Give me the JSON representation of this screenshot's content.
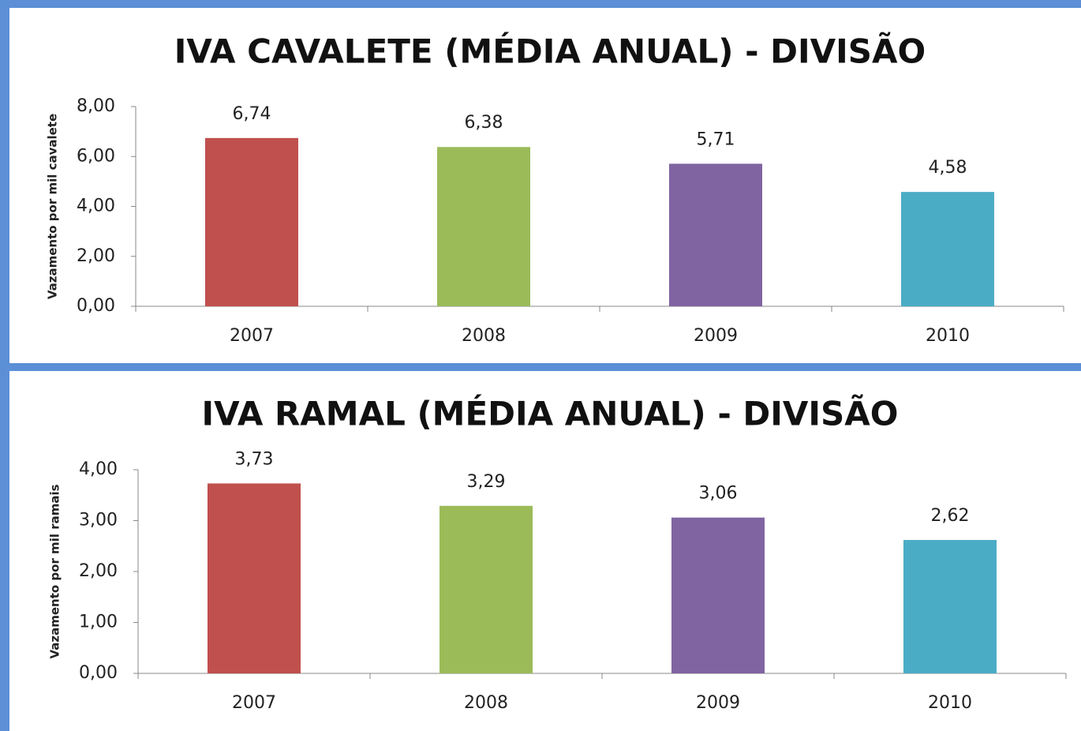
{
  "chart_data": [
    {
      "type": "bar",
      "title": "IVA CAVALETE (MÉDIA ANUAL) - DIVISÃO",
      "y_label": "Vazamento por  mil cavalete",
      "categories": [
        "2007",
        "2008",
        "2009",
        "2010"
      ],
      "values": [
        6.74,
        6.38,
        5.71,
        4.58
      ],
      "value_labels": [
        "6,74",
        "6,38",
        "5,71",
        "4,58"
      ],
      "colors": [
        "#c0504d",
        "#9bbb59",
        "#8064a2",
        "#4bacc6"
      ],
      "ylim": [
        0,
        8
      ],
      "yticks": [
        {
          "value": 0,
          "label": "0,00"
        },
        {
          "value": 2,
          "label": "2,00"
        },
        {
          "value": 4,
          "label": "4,00"
        },
        {
          "value": 6,
          "label": "6,00"
        },
        {
          "value": 8,
          "label": "8,00"
        }
      ]
    },
    {
      "type": "bar",
      "title": "IVA RAMAL (MÉDIA ANUAL) - DIVISÃO",
      "y_label": "Vazamento por  mil ramais",
      "categories": [
        "2007",
        "2008",
        "2009",
        "2010"
      ],
      "values": [
        3.73,
        3.29,
        3.06,
        2.62
      ],
      "value_labels": [
        "3,73",
        "3,29",
        "3,06",
        "2,62"
      ],
      "colors": [
        "#c0504d",
        "#9bbb59",
        "#8064a2",
        "#4bacc6"
      ],
      "ylim": [
        0,
        4
      ],
      "yticks": [
        {
          "value": 0,
          "label": "0,00"
        },
        {
          "value": 1,
          "label": "1,00"
        },
        {
          "value": 2,
          "label": "2,00"
        },
        {
          "value": 3,
          "label": "3,00"
        },
        {
          "value": 4,
          "label": "4,00"
        }
      ]
    }
  ]
}
